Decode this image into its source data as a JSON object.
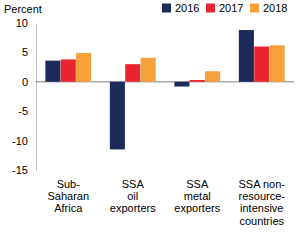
{
  "chart_data": {
    "type": "bar",
    "ylabel": "Percent",
    "categories": [
      "Sub-\nSaharan\nAfrica",
      "SSA\noil\nexporters",
      "SSA\nmetal\nexporters",
      "SSA non-\nresource-\nintensive\ncountries"
    ],
    "series": [
      {
        "name": "2016",
        "color": "#1c2a5c",
        "values": [
          3.6,
          -11.5,
          -0.8,
          8.8
        ]
      },
      {
        "name": "2017",
        "color": "#e8252e",
        "values": [
          3.8,
          3.0,
          0.3,
          6.0
        ]
      },
      {
        "name": "2018",
        "color": "#f7a13c",
        "values": [
          4.9,
          4.1,
          1.8,
          6.2
        ]
      }
    ],
    "ylim": [
      -15,
      10
    ],
    "yticks": [
      -15,
      -10,
      -5,
      0,
      5,
      10
    ],
    "grid": false,
    "legend": "top-right"
  }
}
